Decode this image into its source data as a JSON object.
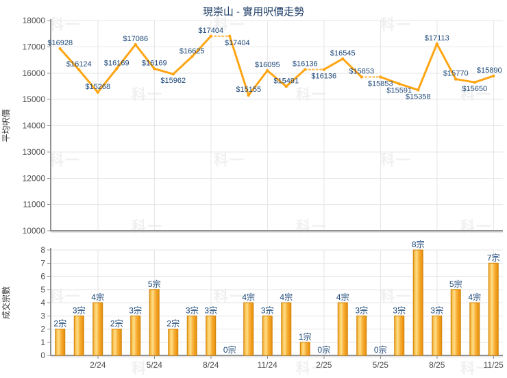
{
  "title": "現崇山 - 實用呎價走勢",
  "watermark": {
    "text": "科一"
  },
  "colors": {
    "line": "#FFA513",
    "line_dotted": "#FFBE55",
    "data_label": "#1C4778",
    "title": "#1C3C64",
    "axis_line": "#909090",
    "axis_shadow": "#CFCFCF",
    "grid": "#E6E6E6",
    "tick_label": "#4D4D4D",
    "axis_title": "#333333",
    "watermark": "#F0F0F0",
    "bar_border": "#D08309",
    "bar_gradient": [
      "#EC9B1B",
      "#FBC95F",
      "#FFDD87",
      "#F8B038",
      "#EE9A18",
      "#E28D10"
    ]
  },
  "x_axis": {
    "tick_labels": [
      "2/24",
      "5/24",
      "8/24",
      "11/24",
      "2/25",
      "5/25",
      "8/25",
      "11/25"
    ],
    "tick_indices": [
      3,
      6,
      9,
      12,
      15,
      18,
      21,
      24
    ]
  },
  "chart_data": [
    {
      "type": "line",
      "ylabel": "平均呎價",
      "ylim": [
        10000,
        18000
      ],
      "ytick_step": 1000,
      "grid": true,
      "values": [
        16928,
        16124,
        15268,
        16169,
        17086,
        16169,
        15962,
        16625,
        17404,
        17404,
        15155,
        16095,
        15491,
        16136,
        16136,
        16545,
        15853,
        15853,
        15591,
        15358,
        17113,
        15770,
        15650,
        15890
      ],
      "labels": [
        "$16928",
        "$16124",
        "$15268",
        "$16169",
        "$17086",
        "$16169",
        "$15962",
        "$16625",
        "$17404",
        "$17404",
        "$15155",
        "$16095",
        "$15491",
        "$16136",
        "$16136",
        "$16545",
        "$15853",
        "$15853",
        "$15591",
        "$15358",
        "$17113",
        "$15770",
        "$15650",
        "$15890"
      ],
      "label_side": [
        "above",
        "above",
        "above",
        "above",
        "above",
        "above",
        "below",
        "above",
        "above",
        "below",
        "above",
        "above",
        "above",
        "above",
        "below",
        "above",
        "above",
        "below",
        "below",
        "below",
        "above",
        "above",
        "below",
        "above"
      ],
      "label_dx": {
        "9": 11,
        "23": -6
      },
      "dotted_after": [
        8,
        13,
        16
      ]
    },
    {
      "type": "bar",
      "ylabel": "成交宗數",
      "ylim": [
        0,
        8
      ],
      "ytick_step": 1,
      "grid": true,
      "values": [
        2,
        3,
        4,
        2,
        3,
        5,
        2,
        3,
        3,
        0,
        4,
        3,
        4,
        1,
        0,
        4,
        3,
        0,
        3,
        8,
        3,
        5,
        4,
        7
      ],
      "unit_suffix": "宗",
      "bar_labels": [
        "2宗",
        "3宗",
        "4宗",
        "2宗",
        "3宗",
        "5宗",
        "2宗",
        "3宗",
        "3宗",
        "0宗",
        "4宗",
        "3宗",
        "4宗",
        "1宗",
        "0宗",
        "4宗",
        "3宗",
        "0宗",
        "3宗",
        "8宗",
        "3宗",
        "5宗",
        "4宗",
        "7宗"
      ]
    }
  ]
}
